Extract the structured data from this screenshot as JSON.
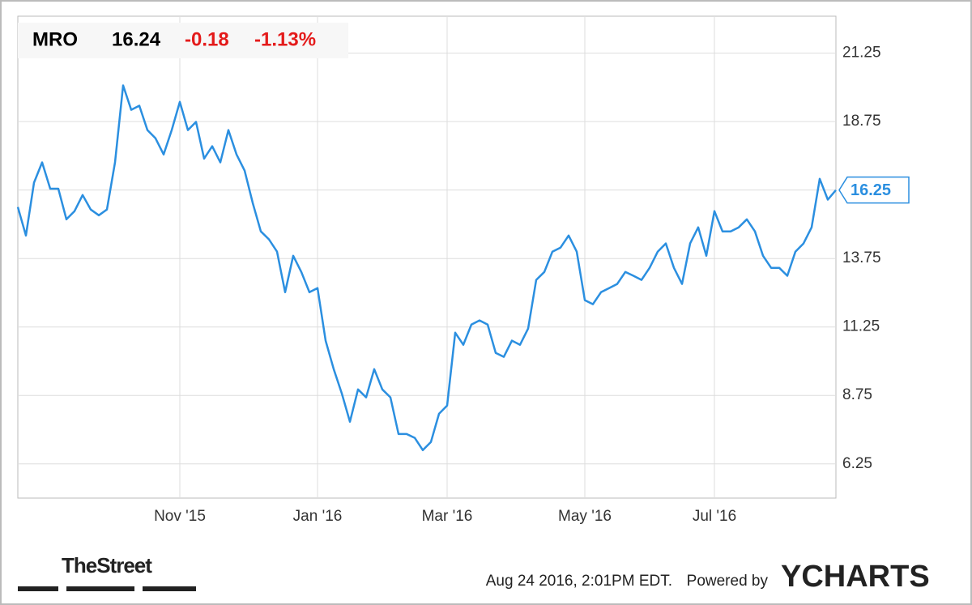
{
  "chart_data": {
    "type": "line",
    "header": {
      "price": "16.24",
      "change": "-0.18",
      "change_pct": "-1.13%"
    },
    "categories": [
      null,
      null,
      null,
      null,
      null,
      null,
      null,
      null,
      null,
      null,
      null,
      null,
      null,
      null,
      null,
      null,
      null,
      null,
      null,
      null,
      "Nov '15",
      null,
      null,
      null,
      null,
      null,
      null,
      null,
      null,
      null,
      null,
      null,
      null,
      null,
      null,
      null,
      null,
      "Jan '16",
      null,
      null,
      null,
      null,
      null,
      null,
      null,
      null,
      null,
      null,
      null,
      null,
      null,
      null,
      null,
      "Mar '16",
      null,
      null,
      null,
      null,
      null,
      null,
      null,
      null,
      null,
      null,
      null,
      null,
      null,
      null,
      null,
      null,
      "May '16",
      null,
      null,
      null,
      null,
      null,
      null,
      null,
      null,
      null,
      null,
      null,
      null,
      null,
      null,
      null,
      "Jul '16",
      null,
      null,
      null,
      null,
      null,
      null,
      null,
      null,
      null,
      null,
      null,
      null,
      null,
      null,
      null
    ],
    "series": [
      {
        "name": "MRO",
        "color": "#2b8fe0",
        "values": [
          15.63,
          14.59,
          16.52,
          17.26,
          16.3,
          16.3,
          15.18,
          15.48,
          16.07,
          15.54,
          15.33,
          15.54,
          17.26,
          20.07,
          19.18,
          19.33,
          18.44,
          18.14,
          17.55,
          18.44,
          19.47,
          18.44,
          18.74,
          17.4,
          17.85,
          17.26,
          18.44,
          17.55,
          16.96,
          15.78,
          14.74,
          14.45,
          14.0,
          12.52,
          13.85,
          13.26,
          12.52,
          12.67,
          10.75,
          9.71,
          8.82,
          7.79,
          8.97,
          8.68,
          9.71,
          8.97,
          8.68,
          7.34,
          7.34,
          7.2,
          6.75,
          7.05,
          8.08,
          8.38,
          11.04,
          10.6,
          11.34,
          11.49,
          11.34,
          10.3,
          10.16,
          10.75,
          10.6,
          11.19,
          12.97,
          13.26,
          14.0,
          14.15,
          14.59,
          14.0,
          12.23,
          12.08,
          12.52,
          12.67,
          12.82,
          13.26,
          13.12,
          12.97,
          13.41,
          14.0,
          14.3,
          13.41,
          12.82,
          14.3,
          14.89,
          13.85,
          15.48,
          14.74,
          14.74,
          14.89,
          15.18,
          14.74,
          13.85,
          13.41,
          13.41,
          13.12,
          14.0,
          14.3,
          14.89,
          16.66,
          15.9,
          16.25
        ]
      }
    ],
    "ylim": [
      5,
      22.6
    ],
    "yticks": [
      6.25,
      8.75,
      11.25,
      13.75,
      16.25,
      18.75,
      21.25
    ],
    "grid": true
  },
  "footer": {
    "brand": "TheStreet",
    "timestamp": "Aug 24 2016, 2:01PM EDT.",
    "powered_by": "Powered by",
    "logo": "YCHARTS"
  }
}
